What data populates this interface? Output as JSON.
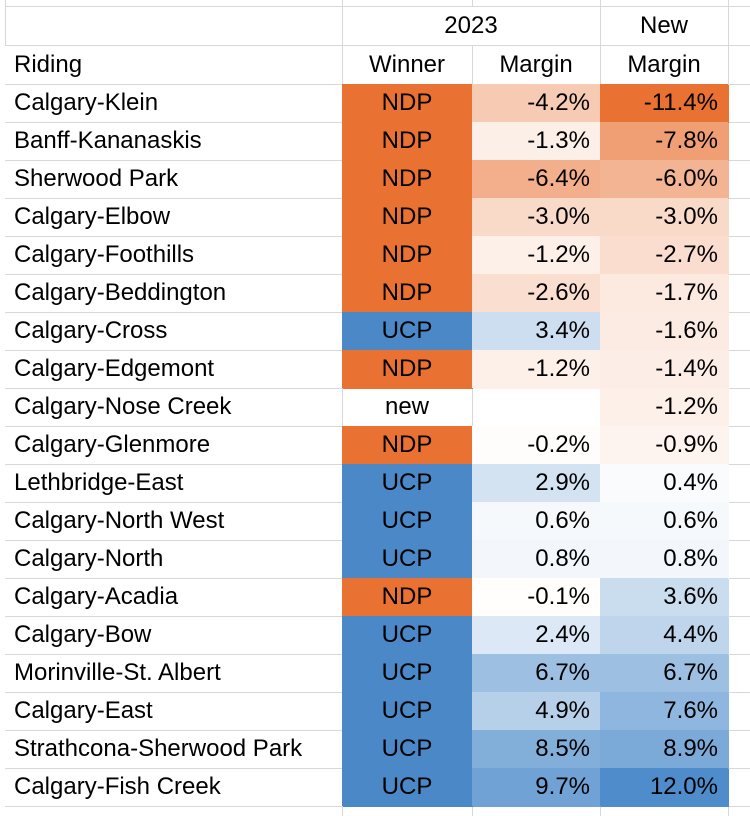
{
  "table": {
    "header": {
      "group_2023": "2023",
      "group_new": "New",
      "riding": "Riding",
      "winner": "Winner",
      "margin_2023": "Margin",
      "margin_new": "Margin"
    },
    "rows": [
      {
        "riding": "Calgary-Klein",
        "winner": "NDP",
        "margin_2023": "-4.2%",
        "margin_2023_value": -4.2,
        "margin_new": "-11.4%",
        "margin_new_value": -11.4
      },
      {
        "riding": "Banff-Kananaskis",
        "winner": "NDP",
        "margin_2023": "-1.3%",
        "margin_2023_value": -1.3,
        "margin_new": "-7.8%",
        "margin_new_value": -7.8
      },
      {
        "riding": "Sherwood Park",
        "winner": "NDP",
        "margin_2023": "-6.4%",
        "margin_2023_value": -6.4,
        "margin_new": "-6.0%",
        "margin_new_value": -6.0
      },
      {
        "riding": "Calgary-Elbow",
        "winner": "NDP",
        "margin_2023": "-3.0%",
        "margin_2023_value": -3.0,
        "margin_new": "-3.0%",
        "margin_new_value": -3.0
      },
      {
        "riding": "Calgary-Foothills",
        "winner": "NDP",
        "margin_2023": "-1.2%",
        "margin_2023_value": -1.2,
        "margin_new": "-2.7%",
        "margin_new_value": -2.7
      },
      {
        "riding": "Calgary-Beddington",
        "winner": "NDP",
        "margin_2023": "-2.6%",
        "margin_2023_value": -2.6,
        "margin_new": "-1.7%",
        "margin_new_value": -1.7
      },
      {
        "riding": "Calgary-Cross",
        "winner": "UCP",
        "margin_2023": "3.4%",
        "margin_2023_value": 3.4,
        "margin_new": "-1.6%",
        "margin_new_value": -1.6
      },
      {
        "riding": "Calgary-Edgemont",
        "winner": "NDP",
        "margin_2023": "-1.2%",
        "margin_2023_value": -1.2,
        "margin_new": "-1.4%",
        "margin_new_value": -1.4
      },
      {
        "riding": "Calgary-Nose Creek",
        "winner": "new",
        "margin_2023": null,
        "margin_2023_value": null,
        "margin_new": "-1.2%",
        "margin_new_value": -1.2
      },
      {
        "riding": "Calgary-Glenmore",
        "winner": "NDP",
        "margin_2023": "-0.2%",
        "margin_2023_value": -0.2,
        "margin_new": "-0.9%",
        "margin_new_value": -0.9
      },
      {
        "riding": "Lethbridge-East",
        "winner": "UCP",
        "margin_2023": "2.9%",
        "margin_2023_value": 2.9,
        "margin_new": "0.4%",
        "margin_new_value": 0.4
      },
      {
        "riding": "Calgary-North West",
        "winner": "UCP",
        "margin_2023": "0.6%",
        "margin_2023_value": 0.6,
        "margin_new": "0.6%",
        "margin_new_value": 0.6
      },
      {
        "riding": "Calgary-North",
        "winner": "UCP",
        "margin_2023": "0.8%",
        "margin_2023_value": 0.8,
        "margin_new": "0.8%",
        "margin_new_value": 0.8
      },
      {
        "riding": "Calgary-Acadia",
        "winner": "NDP",
        "margin_2023": "-0.1%",
        "margin_2023_value": -0.1,
        "margin_new": "3.6%",
        "margin_new_value": 3.6
      },
      {
        "riding": "Calgary-Bow",
        "winner": "UCP",
        "margin_2023": "2.4%",
        "margin_2023_value": 2.4,
        "margin_new": "4.4%",
        "margin_new_value": 4.4
      },
      {
        "riding": "Morinville-St. Albert",
        "winner": "UCP",
        "margin_2023": "6.7%",
        "margin_2023_value": 6.7,
        "margin_new": "6.7%",
        "margin_new_value": 6.7
      },
      {
        "riding": "Calgary-East",
        "winner": "UCP",
        "margin_2023": "4.9%",
        "margin_2023_value": 4.9,
        "margin_new": "7.6%",
        "margin_new_value": 7.6
      },
      {
        "riding": "Strathcona-Sherwood Park",
        "winner": "UCP",
        "margin_2023": "8.5%",
        "margin_2023_value": 8.5,
        "margin_new": "8.9%",
        "margin_new_value": 8.9
      },
      {
        "riding": "Calgary-Fish Creek",
        "winner": "UCP",
        "margin_2023": "9.7%",
        "margin_2023_value": 9.7,
        "margin_new": "12.0%",
        "margin_new_value": 12.0
      }
    ]
  },
  "colors": {
    "ndp_fill": "#E97132",
    "ucp_fill": "#4A88C7",
    "gridline": "#D8D8D8",
    "text": "#000000",
    "background": "#FFFFFF",
    "scale": {
      "min": -11.4,
      "max": 12.0,
      "negative_end": "#E97132",
      "midpoint": "#FFFFFF",
      "positive_end": "#4E8CCB"
    }
  }
}
